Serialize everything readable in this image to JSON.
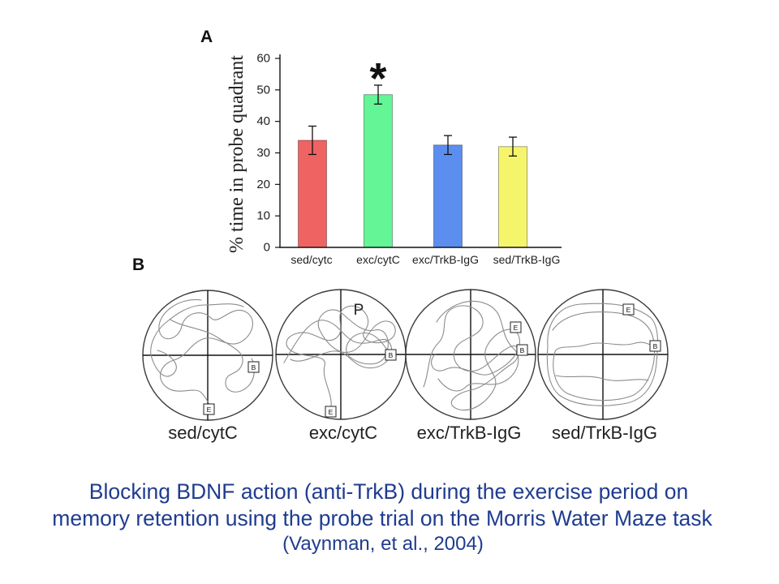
{
  "panel_a": {
    "label": "A"
  },
  "chart_data": {
    "type": "bar",
    "categories": [
      "sed/cytc",
      "exc/cytC",
      "exc/TrkB-IgG",
      "sed/TrkB-IgG"
    ],
    "values": [
      34,
      48.5,
      32.5,
      32
    ],
    "errors": [
      4.5,
      3,
      3,
      3
    ],
    "significance": [
      "",
      "*",
      "",
      ""
    ],
    "colors": [
      "#ef6363",
      "#63f596",
      "#5c8ef0",
      "#f5f56b"
    ],
    "ylabel": "% time in probe quadrant",
    "ylim": [
      0,
      60
    ],
    "yticks": [
      0,
      10,
      20,
      30,
      40,
      50,
      60
    ],
    "grid": false
  },
  "panel_b": {
    "label": "B",
    "mazes": [
      {
        "label": "sed/cytC",
        "markers": [
          "B",
          "E"
        ]
      },
      {
        "label": "exc/cytC",
        "quadrant_label": "P",
        "markers": [
          "B",
          "E"
        ]
      },
      {
        "label": "exc/TrkB-IgG",
        "markers": [
          "E",
          "B"
        ]
      },
      {
        "label": "sed/TrkB-IgG",
        "markers": [
          "E",
          "B"
        ]
      }
    ]
  },
  "caption": {
    "lines": [
      "Blocking BDNF action (anti-TrkB) during the exercise period on",
      "memory retention using the probe trial on the Morris Water Maze task"
    ],
    "citation": "(Vaynman, et al., 2004)",
    "color": "#1f3c8f"
  }
}
